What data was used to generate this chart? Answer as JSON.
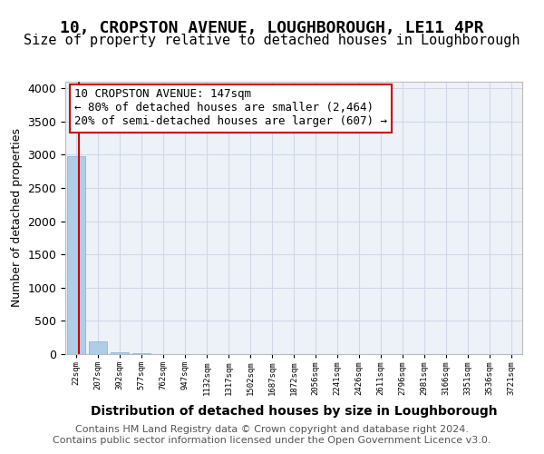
{
  "title": "10, CROPSTON AVENUE, LOUGHBOROUGH, LE11 4PR",
  "subtitle": "Size of property relative to detached houses in Loughborough",
  "xlabel": "Distribution of detached houses by size in Loughborough",
  "ylabel": "Number of detached properties",
  "bin_labels": [
    "22sqm",
    "207sqm",
    "392sqm",
    "577sqm",
    "762sqm",
    "947sqm",
    "1132sqm",
    "1317sqm",
    "1502sqm",
    "1687sqm",
    "1872sqm",
    "2056sqm",
    "2241sqm",
    "2426sqm",
    "2611sqm",
    "2796sqm",
    "2981sqm",
    "3166sqm",
    "3351sqm",
    "3536sqm",
    "3721sqm"
  ],
  "bar_values": [
    2980,
    185,
    25,
    10,
    5,
    3,
    2,
    1,
    1,
    1,
    1,
    0,
    0,
    0,
    0,
    0,
    0,
    0,
    0,
    0,
    0
  ],
  "bar_color": "#aecde8",
  "bar_edge_color": "#7ab0d4",
  "grid_color": "#d0d8e8",
  "background_color": "#edf2f9",
  "property_line_color": "#cc0000",
  "ylim": [
    0,
    4100
  ],
  "yticks": [
    0,
    500,
    1000,
    1500,
    2000,
    2500,
    3000,
    3500,
    4000
  ],
  "annotation_text": "10 CROPSTON AVENUE: 147sqm\n← 80% of detached houses are smaller (2,464)\n20% of semi-detached houses are larger (607) →",
  "annotation_box_color": "#ffffff",
  "annotation_border_color": "#cc0000",
  "footer_text": "Contains HM Land Registry data © Crown copyright and database right 2024.\nContains public sector information licensed under the Open Government Licence v3.0.",
  "title_fontsize": 13,
  "subtitle_fontsize": 11,
  "annotation_fontsize": 9,
  "footer_fontsize": 8
}
